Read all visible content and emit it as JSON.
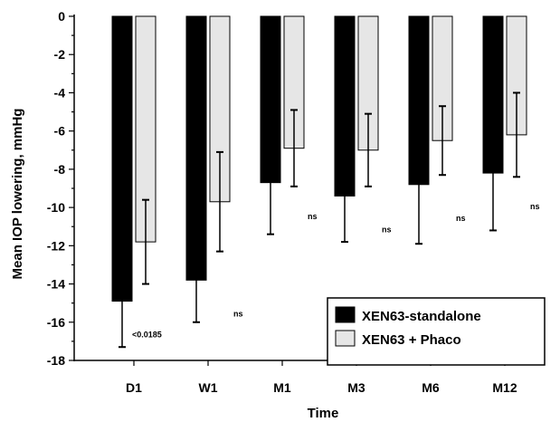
{
  "chart_data": {
    "type": "bar",
    "title": "",
    "xlabel": "Time",
    "ylabel": "Mean IOP lowering, mmHg",
    "ylim": [
      -18,
      0
    ],
    "yticks": [
      0,
      -2,
      -4,
      -6,
      -8,
      -10,
      -12,
      -14,
      -16,
      -18
    ],
    "categories": [
      "D1",
      "W1",
      "M1",
      "M3",
      "M6",
      "M12"
    ],
    "series": [
      {
        "name": "XEN63-standalone",
        "color": "#000000",
        "values": [
          -14.9,
          -13.8,
          -8.7,
          -9.4,
          -8.8,
          -8.2
        ],
        "error": [
          2.4,
          2.2,
          2.7,
          2.4,
          3.1,
          3.0
        ]
      },
      {
        "name": "XEN63 + Phaco",
        "color": "#e6e6e6",
        "values": [
          -11.8,
          -9.7,
          -6.9,
          -7.0,
          -6.5,
          -6.2
        ],
        "error": [
          2.2,
          2.6,
          2.0,
          1.9,
          1.8,
          2.2
        ]
      }
    ],
    "annotations": [
      "<0.0185",
      "ns",
      "ns",
      "ns",
      "ns",
      "ns"
    ],
    "legend_position": "bottom-right",
    "grid": false
  }
}
